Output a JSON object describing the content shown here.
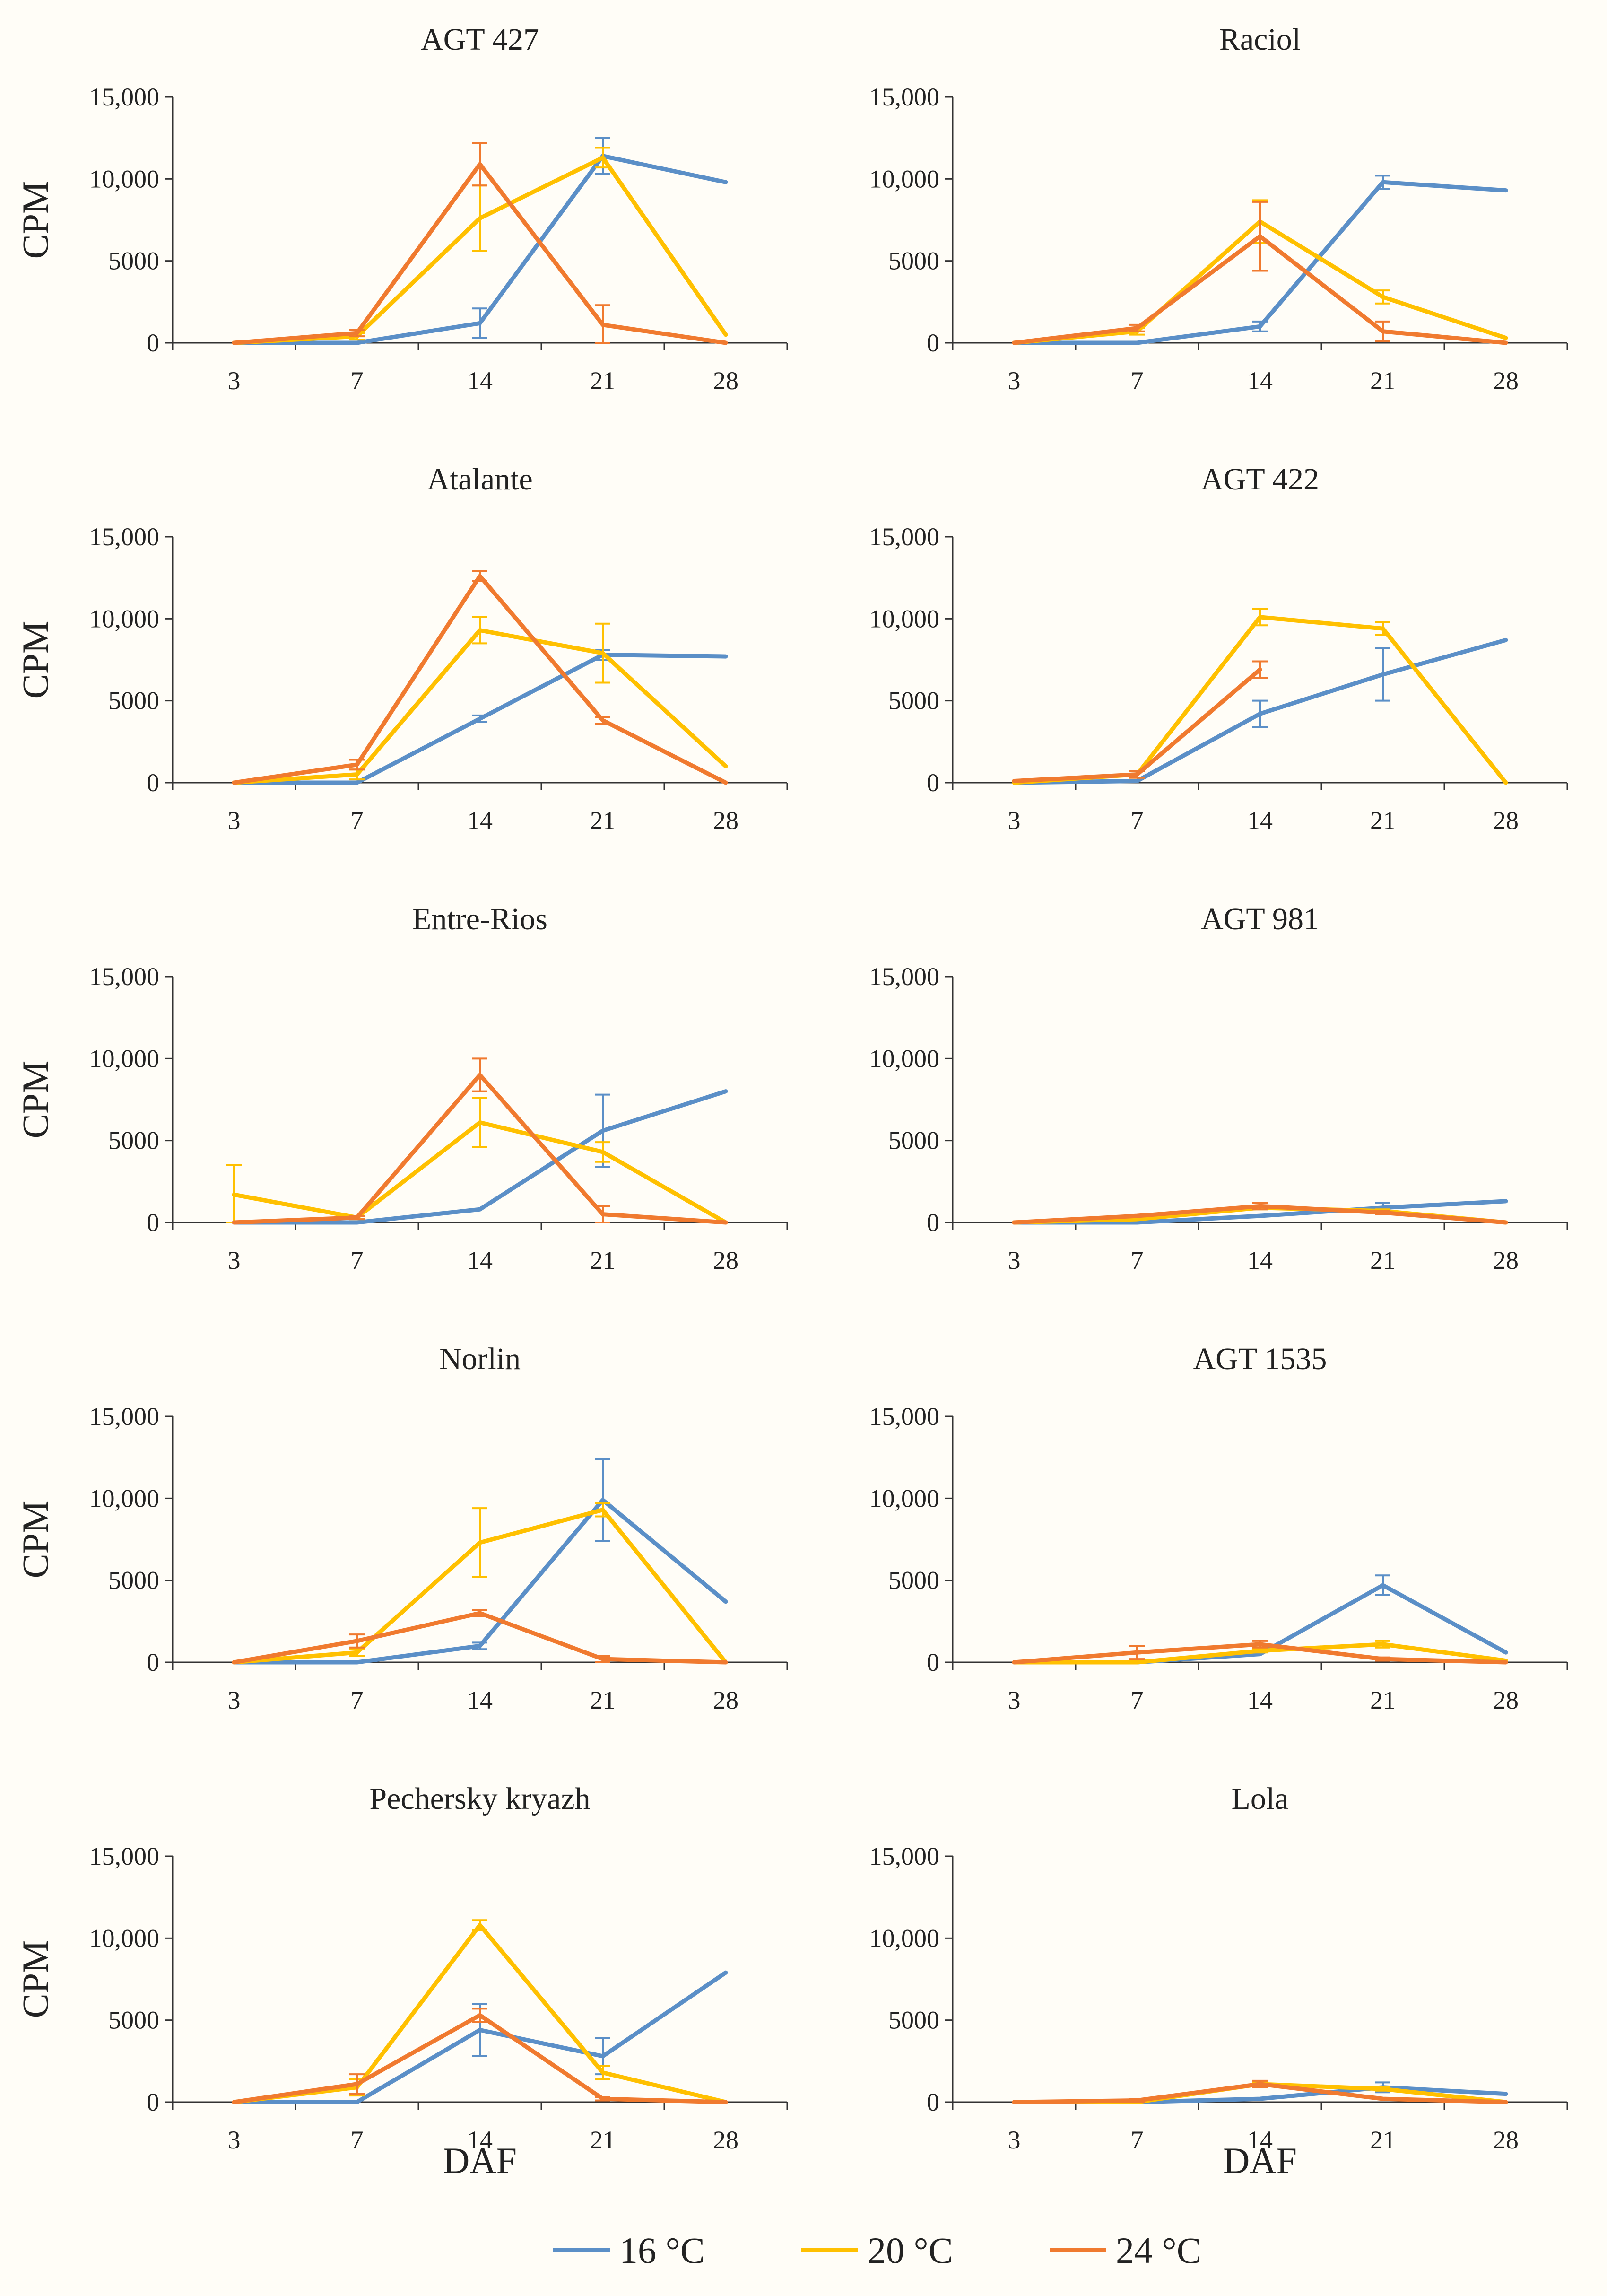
{
  "chart_data": {
    "type": "line",
    "x_label": "DAF",
    "y_label": "CPM",
    "x_categories": [
      "3",
      "7",
      "14",
      "21",
      "28"
    ],
    "y_ticks": [
      "0",
      "5000",
      "10,000",
      "15,000"
    ],
    "ylim": [
      0,
      15000
    ],
    "legend_position": "bottom-center",
    "series_names": [
      "16 °C",
      "20 °C",
      "24 °C"
    ],
    "series_colors": [
      "#5b8fc7",
      "#ffc000",
      "#f07a2f"
    ],
    "panels": [
      {
        "title": "AGT 427",
        "series": [
          {
            "name": "16 °C",
            "values": [
              0,
              0,
              1200,
              11400,
              9800
            ],
            "errors": [
              0,
              0,
              900,
              1100,
              0
            ]
          },
          {
            "name": "20 °C",
            "values": [
              0,
              400,
              7600,
              11300,
              500
            ],
            "errors": [
              0,
              200,
              2000,
              600,
              0
            ]
          },
          {
            "name": "24 °C",
            "values": [
              0,
              600,
              10900,
              1100,
              0
            ],
            "errors": [
              0,
              200,
              1300,
              1200,
              0
            ]
          }
        ]
      },
      {
        "title": "Raciol",
        "series": [
          {
            "name": "16 °C",
            "values": [
              0,
              0,
              1000,
              9800,
              9300
            ],
            "errors": [
              0,
              0,
              300,
              400,
              0
            ]
          },
          {
            "name": "20 °C",
            "values": [
              0,
              700,
              7400,
              2800,
              300
            ],
            "errors": [
              0,
              200,
              1300,
              400,
              0
            ]
          },
          {
            "name": "24 °C",
            "values": [
              0,
              900,
              6500,
              700,
              0
            ],
            "errors": [
              0,
              200,
              2100,
              600,
              0
            ]
          }
        ]
      },
      {
        "title": "Atalante",
        "series": [
          {
            "name": "16 °C",
            "values": [
              0,
              0,
              3900,
              7800,
              7700
            ],
            "errors": [
              0,
              0,
              200,
              300,
              0
            ]
          },
          {
            "name": "20 °C",
            "values": [
              0,
              500,
              9300,
              7900,
              1000
            ],
            "errors": [
              0,
              300,
              800,
              1800,
              0
            ]
          },
          {
            "name": "24 °C",
            "values": [
              0,
              1100,
              12600,
              3800,
              0
            ],
            "errors": [
              0,
              300,
              300,
              200,
              0
            ]
          }
        ]
      },
      {
        "title": "AGT 422",
        "series": [
          {
            "name": "16 °C",
            "values": [
              0,
              100,
              4200,
              6600,
              8700
            ],
            "errors": [
              0,
              0,
              800,
              1600,
              0
            ]
          },
          {
            "name": "20 °C",
            "values": [
              0,
              500,
              10100,
              9400,
              0
            ],
            "errors": [
              0,
              200,
              500,
              400,
              0
            ]
          },
          {
            "name": "24 °C",
            "values": [
              100,
              500,
              6900,
              null,
              null
            ],
            "errors": [
              0,
              200,
              500,
              0,
              0
            ]
          }
        ]
      },
      {
        "title": "Entre-Rios",
        "series": [
          {
            "name": "16 °C",
            "values": [
              0,
              0,
              800,
              5600,
              8000
            ],
            "errors": [
              0,
              0,
              0,
              2200,
              0
            ]
          },
          {
            "name": "20 °C",
            "values": [
              1700,
              300,
              6100,
              4300,
              0
            ],
            "errors": [
              1800,
              100,
              1500,
              600,
              0
            ]
          },
          {
            "name": "24 °C",
            "values": [
              0,
              300,
              9000,
              500,
              0
            ],
            "errors": [
              0,
              100,
              1000,
              500,
              0
            ]
          }
        ]
      },
      {
        "title": "AGT 981",
        "series": [
          {
            "name": "16 °C",
            "values": [
              0,
              0,
              400,
              900,
              1300
            ],
            "errors": [
              0,
              0,
              0,
              300,
              0
            ]
          },
          {
            "name": "20 °C",
            "values": [
              0,
              200,
              900,
              700,
              0
            ],
            "errors": [
              0,
              0,
              100,
              100,
              0
            ]
          },
          {
            "name": "24 °C",
            "values": [
              0,
              400,
              1000,
              600,
              0
            ],
            "errors": [
              0,
              0,
              200,
              100,
              0
            ]
          }
        ]
      },
      {
        "title": "Norlin",
        "series": [
          {
            "name": "16 °C",
            "values": [
              0,
              0,
              1000,
              9900,
              3700
            ],
            "errors": [
              0,
              0,
              200,
              2500,
              0
            ]
          },
          {
            "name": "20 °C",
            "values": [
              0,
              600,
              7300,
              9300,
              0
            ],
            "errors": [
              0,
              200,
              2100,
              400,
              0
            ]
          },
          {
            "name": "24 °C",
            "values": [
              0,
              1300,
              3000,
              200,
              0
            ],
            "errors": [
              0,
              400,
              200,
              200,
              0
            ]
          }
        ]
      },
      {
        "title": "AGT 1535",
        "series": [
          {
            "name": "16 °C",
            "values": [
              0,
              0,
              500,
              4700,
              600
            ],
            "errors": [
              0,
              0,
              0,
              600,
              0
            ]
          },
          {
            "name": "20 °C",
            "values": [
              0,
              0,
              700,
              1100,
              100
            ],
            "errors": [
              0,
              0,
              100,
              200,
              0
            ]
          },
          {
            "name": "24 °C",
            "values": [
              0,
              600,
              1100,
              200,
              0
            ],
            "errors": [
              0,
              400,
              200,
              100,
              0
            ]
          }
        ]
      },
      {
        "title": "Pechersky kryazh",
        "series": [
          {
            "name": "16 °C",
            "values": [
              0,
              0,
              4400,
              2800,
              7900
            ],
            "errors": [
              0,
              0,
              1600,
              1100,
              0
            ]
          },
          {
            "name": "20 °C",
            "values": [
              0,
              900,
              10800,
              1800,
              0
            ],
            "errors": [
              0,
              500,
              300,
              400,
              0
            ]
          },
          {
            "name": "24 °C",
            "values": [
              0,
              1100,
              5300,
              200,
              0
            ],
            "errors": [
              0,
              600,
              400,
              100,
              0
            ]
          }
        ]
      },
      {
        "title": "Lola",
        "series": [
          {
            "name": "16 °C",
            "values": [
              0,
              0,
              200,
              900,
              500
            ],
            "errors": [
              0,
              0,
              0,
              300,
              0
            ]
          },
          {
            "name": "20 °C",
            "values": [
              0,
              0,
              1100,
              800,
              0
            ],
            "errors": [
              0,
              0,
              100,
              100,
              0
            ]
          },
          {
            "name": "24 °C",
            "values": [
              0,
              100,
              1100,
              200,
              0
            ],
            "errors": [
              0,
              100,
              200,
              0,
              0
            ]
          }
        ]
      }
    ]
  }
}
